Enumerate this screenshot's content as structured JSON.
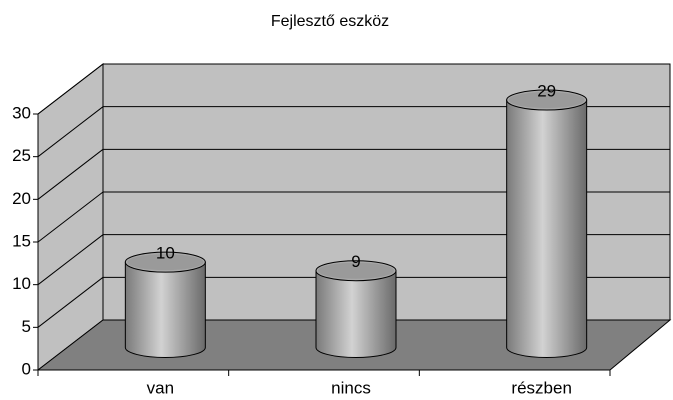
{
  "chart_data": {
    "type": "bar",
    "title": "Fejlesztő eszköz",
    "categories": [
      "van",
      "nincs",
      "részben"
    ],
    "values": [
      10,
      9,
      29
    ],
    "color": "#a8a8a8",
    "ylim": [
      0,
      30
    ],
    "yticks": [
      0,
      5,
      10,
      15,
      20,
      25,
      30
    ],
    "grid": true
  }
}
